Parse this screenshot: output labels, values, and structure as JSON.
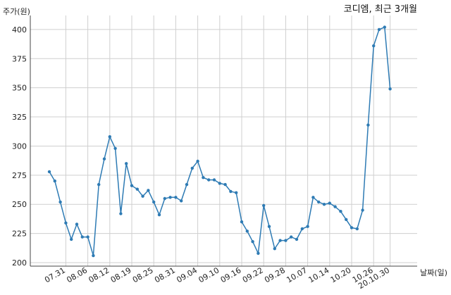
{
  "chart_data": {
    "type": "line",
    "title": "코디엠, 최근 3개월",
    "ylabel": "주가(원)",
    "xlabel": "날짜(일)",
    "ylim": [
      197,
      412
    ],
    "yticks": [
      200,
      225,
      250,
      275,
      300,
      325,
      350,
      375,
      400
    ],
    "grid": true,
    "xtick_labels": [
      "07.31",
      "08.06",
      "08.12",
      "08.19",
      "08.25",
      "08.31",
      "09.04",
      "09.10",
      "09.16",
      "09.22",
      "09.28",
      "10.07",
      "10.14",
      "10.20",
      "10.26",
      "20.10.30"
    ],
    "xtick_index": [
      3,
      7,
      11,
      15,
      19,
      23,
      27,
      31,
      35,
      39,
      43,
      47,
      51,
      55,
      59,
      62
    ],
    "series": [
      {
        "values": [
          278,
          270,
          252,
          234,
          220,
          233,
          222,
          222,
          206,
          267,
          289,
          308,
          298,
          242,
          285,
          266,
          263,
          257,
          262,
          252,
          241,
          255,
          256,
          256,
          253,
          267,
          281,
          287,
          273,
          271,
          271,
          268,
          267,
          261,
          260,
          235,
          227,
          218,
          208,
          249,
          231,
          212,
          219,
          219,
          222,
          220,
          229,
          231,
          256,
          252,
          250,
          251,
          248,
          244,
          237,
          230,
          229,
          245,
          318,
          386,
          400,
          402,
          349
        ]
      }
    ]
  }
}
